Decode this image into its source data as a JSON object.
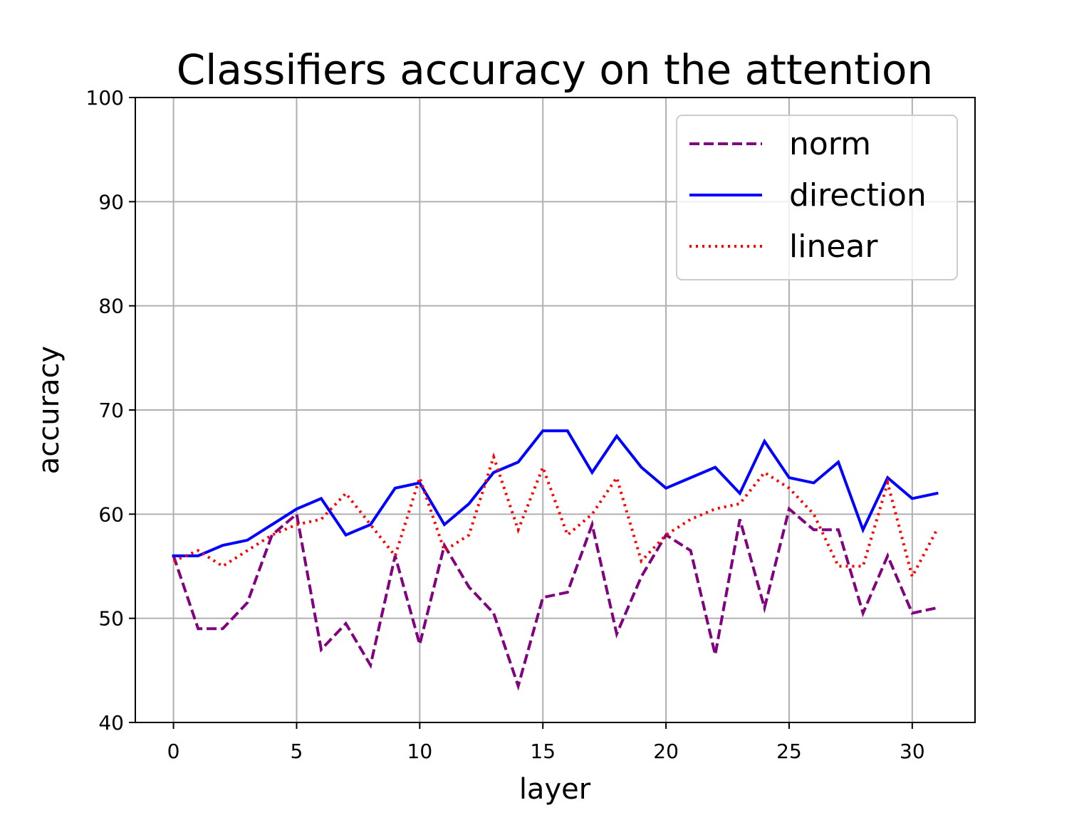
{
  "chart_data": {
    "type": "line",
    "title": "Classifiers accuracy on the attention",
    "xlabel": "layer",
    "ylabel": "accuracy",
    "xlim": [
      -1.55,
      32.55
    ],
    "ylim": [
      40,
      100
    ],
    "xticks": [
      0,
      5,
      10,
      15,
      20,
      25,
      30
    ],
    "yticks": [
      40,
      50,
      60,
      70,
      80,
      90,
      100
    ],
    "grid": true,
    "legend_position": "top-right",
    "x": [
      0,
      1,
      2,
      3,
      4,
      5,
      6,
      7,
      8,
      9,
      10,
      11,
      12,
      13,
      14,
      15,
      16,
      17,
      18,
      19,
      20,
      21,
      22,
      23,
      24,
      25,
      26,
      27,
      28,
      29,
      30,
      31
    ],
    "series": [
      {
        "name": "norm",
        "color": "#800080",
        "dash": "dashed",
        "values": [
          56,
          49,
          49,
          51.5,
          58,
          60,
          47,
          49.5,
          45.5,
          56,
          47.5,
          57,
          53,
          50.5,
          43.5,
          52,
          52.5,
          59,
          48.5,
          54,
          58,
          56.5,
          46.5,
          59.5,
          51,
          60.5,
          58.5,
          58.5,
          50.5,
          56,
          50.5,
          51
        ]
      },
      {
        "name": "direction",
        "color": "#0000ff",
        "dash": "solid",
        "values": [
          56,
          56,
          57,
          57.5,
          59,
          60.5,
          61.5,
          58,
          59,
          62.5,
          63,
          59,
          61,
          64,
          65,
          68,
          68,
          64,
          67.5,
          64.5,
          62.5,
          63.5,
          64.5,
          62,
          67,
          63.5,
          63,
          65,
          58.5,
          63.5,
          61.5,
          62
        ]
      },
      {
        "name": "linear",
        "color": "#ff0000",
        "dash": "dotted",
        "values": [
          55.5,
          56.5,
          55,
          56.5,
          58,
          59,
          59.5,
          62,
          59,
          56,
          63.5,
          56.5,
          58,
          65.5,
          58.5,
          64.5,
          58,
          60,
          63.5,
          55.5,
          58,
          59.5,
          60.5,
          61,
          64,
          62.5,
          60,
          55,
          55,
          63,
          54,
          58.5
        ]
      }
    ]
  }
}
